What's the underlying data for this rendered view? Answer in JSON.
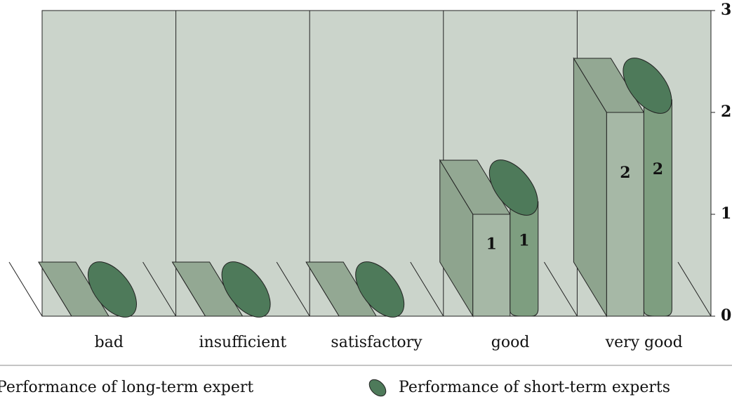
{
  "chart_data": {
    "type": "bar3d",
    "categories": [
      "bad",
      "insufficient",
      "satisfactory",
      "good",
      "very good"
    ],
    "series": [
      {
        "name": "Performance of long-term expert",
        "color": "#93a893",
        "values": [
          0,
          0,
          0,
          1,
          2
        ]
      },
      {
        "name": "Performance of short-term experts",
        "color": "#4e7a5a",
        "values": [
          0,
          0,
          0,
          1,
          2
        ]
      }
    ],
    "ylim": [
      0,
      3
    ],
    "yticks": [
      0,
      1,
      2,
      3
    ],
    "grid": true,
    "legend": "bottom"
  }
}
